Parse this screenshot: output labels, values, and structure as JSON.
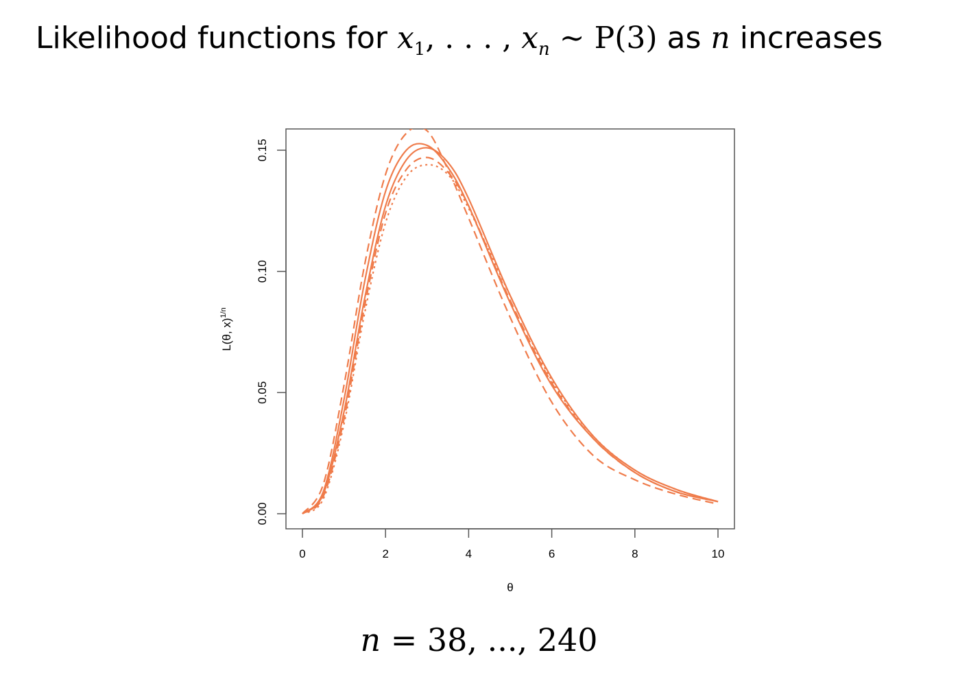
{
  "title": {
    "text_before": "Likelihood functions for ",
    "x": "x",
    "sub1": "1",
    "ellipsis": ", . . . , ",
    "sub_n": "n",
    "sim": " ~ ",
    "dist": "P(3)",
    "as": " as ",
    "n": "n",
    "increases": " increases"
  },
  "caption": {
    "n": "n",
    "rest": " = 38, ..., 240"
  },
  "colors": {
    "curve": "#ef7b4a",
    "axis": "#555555"
  },
  "chart_data": {
    "type": "line",
    "title": "",
    "xlabel": "θ",
    "ylabel": "L(θ, x)^(1/n)",
    "ylabel_display": "L(θ, x)",
    "ylabel_exponent": "1/n",
    "xlim": [
      0,
      10
    ],
    "ylim": [
      0,
      0.15
    ],
    "xticks": [
      "0",
      "2",
      "4",
      "6",
      "8",
      "10"
    ],
    "yticks": [
      "0.00",
      "0.05",
      "0.10",
      "0.15"
    ],
    "grid": false,
    "legend": "none",
    "x": [
      0,
      0.5,
      1,
      1.5,
      2,
      2.5,
      3,
      3.5,
      4,
      5,
      6,
      7,
      8,
      9,
      10
    ],
    "series": [
      {
        "style": "dashed",
        "values": [
          0.0,
          0.012,
          0.053,
          0.103,
          0.14,
          0.157,
          0.158,
          0.142,
          0.122,
          0.081,
          0.046,
          0.024,
          0.014,
          0.008,
          0.004
        ]
      },
      {
        "style": "solid",
        "values": [
          0.0,
          0.009,
          0.047,
          0.096,
          0.133,
          0.15,
          0.152,
          0.143,
          0.127,
          0.087,
          0.053,
          0.031,
          0.017,
          0.009,
          0.005
        ]
      },
      {
        "style": "solid",
        "values": [
          0.0,
          0.008,
          0.042,
          0.089,
          0.127,
          0.146,
          0.151,
          0.145,
          0.13,
          0.09,
          0.056,
          0.032,
          0.018,
          0.01,
          0.005
        ]
      },
      {
        "style": "dashed",
        "values": [
          0.0,
          0.007,
          0.039,
          0.086,
          0.124,
          0.142,
          0.147,
          0.141,
          0.127,
          0.088,
          0.054,
          0.031,
          0.017,
          0.009,
          0.005
        ]
      },
      {
        "style": "dotted",
        "values": [
          0.0,
          0.006,
          0.037,
          0.083,
          0.12,
          0.139,
          0.144,
          0.14,
          0.126,
          0.09,
          0.055,
          0.032,
          0.018,
          0.01,
          0.005
        ]
      }
    ]
  }
}
